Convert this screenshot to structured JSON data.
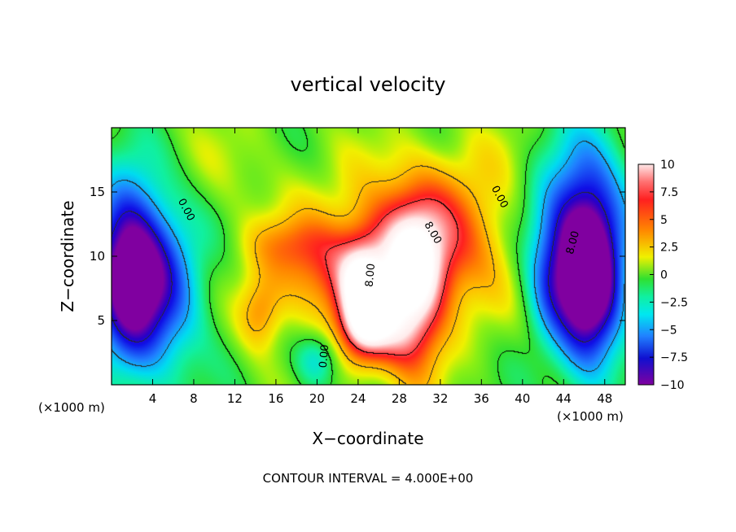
{
  "chart_data": {
    "type": "heatmap",
    "title": "vertical velocity",
    "xlabel": "X−coordinate",
    "ylabel": "Z−coordinate",
    "x_unit": "(×1000 m)",
    "x_unit_right": "(×1000 m)",
    "footer": "CONTOUR INTERVAL = 4.000E+00",
    "xlim": [
      0,
      50
    ],
    "ylim": [
      0,
      20
    ],
    "x_ticks": [
      4,
      8,
      12,
      16,
      20,
      24,
      28,
      32,
      36,
      40,
      44,
      48
    ],
    "y_ticks": [
      5,
      10,
      15
    ],
    "colorbar": {
      "min": -10,
      "max": 10,
      "ticks": [
        "10",
        "7.5",
        "5",
        "2.5",
        "0",
        "−2.5",
        "−5",
        "−7.5",
        "−10"
      ]
    },
    "contour_labels": [
      {
        "text": "0.00",
        "x": 7,
        "z": 13.5,
        "angle": 62
      },
      {
        "text": "0.00",
        "x": 21,
        "z": 2.2,
        "angle": -85
      },
      {
        "text": "0.00",
        "x": 37.5,
        "z": 14.5,
        "angle": 62
      },
      {
        "text": "8.00",
        "x": 25.5,
        "z": 8.5,
        "angle": -85
      },
      {
        "text": "8.00",
        "x": 31,
        "z": 11.7,
        "angle": 60
      },
      {
        "text": "8.00",
        "x": 45.2,
        "z": 11,
        "angle": -75
      }
    ],
    "blobs": [
      {
        "x": 30,
        "z": 11,
        "sx": 6.5,
        "sz": 4,
        "amp": 7
      },
      {
        "x": 29.5,
        "z": 7,
        "sx": 2.2,
        "sz": 4.5,
        "amp": 8
      },
      {
        "x": 24.5,
        "z": 6.5,
        "sx": 1.6,
        "sz": 3,
        "amp": 8
      },
      {
        "x": 25.5,
        "z": 4,
        "sx": 2.8,
        "sz": 2,
        "amp": 5
      },
      {
        "x": 20.5,
        "z": 8.5,
        "sx": 4,
        "sz": 2.5,
        "amp": 4
      },
      {
        "x": 14.5,
        "z": 5.5,
        "sx": 1.5,
        "sz": 2,
        "amp": 4
      },
      {
        "x": 17,
        "z": 11,
        "sx": 3,
        "sz": 1.5,
        "amp": 2.5
      },
      {
        "x": 1.5,
        "z": 9,
        "sx": 2.5,
        "sz": 5,
        "amp": -11
      },
      {
        "x": 5,
        "z": 8,
        "sx": 3,
        "sz": 5,
        "amp": -6
      },
      {
        "x": 46.5,
        "z": 8,
        "sx": 2.2,
        "sz": 5,
        "amp": -11
      },
      {
        "x": 45,
        "z": 12,
        "sx": 3.5,
        "sz": 5,
        "amp": -7
      },
      {
        "x": 42.5,
        "z": 8,
        "sx": 1.5,
        "sz": 3,
        "amp": -3
      },
      {
        "x": 20,
        "z": 2,
        "sx": 1.5,
        "sz": 1.5,
        "amp": -4
      },
      {
        "x": 8,
        "z": 16,
        "sx": 6,
        "sz": 4,
        "amp": 1.2
      },
      {
        "x": 37,
        "z": 17,
        "sx": 5,
        "sz": 3,
        "amp": 1
      }
    ]
  }
}
